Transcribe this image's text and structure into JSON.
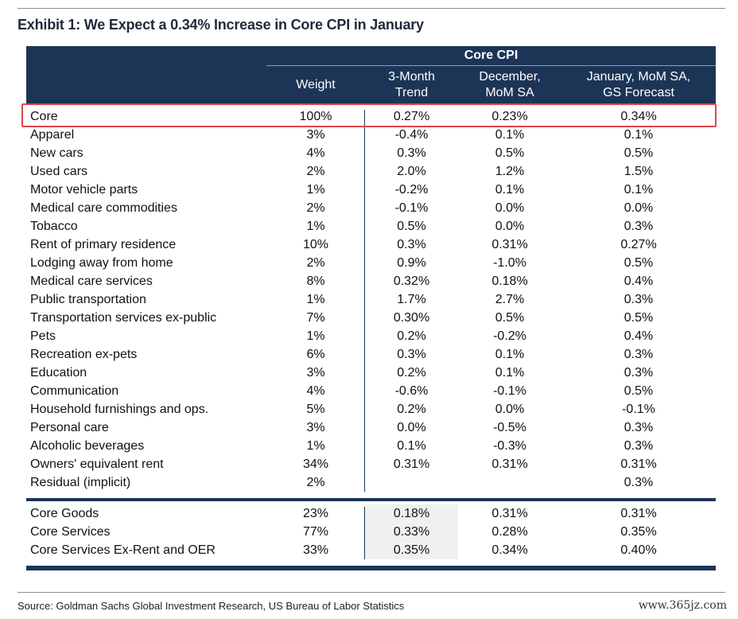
{
  "title": "Exhibit 1: We Expect a 0.34% Increase in Core CPI in January",
  "table": {
    "group_header": "Core CPI",
    "columns": [
      "Weight",
      "3-Month\nTrend",
      "December,\nMoM SA",
      "January, MoM SA,\nGS Forecast"
    ],
    "rows": [
      [
        "Core",
        "100%",
        "0.27%",
        "0.23%",
        "0.34%"
      ],
      [
        "Apparel",
        "3%",
        "-0.4%",
        "0.1%",
        "0.1%"
      ],
      [
        "New cars",
        "4%",
        "0.3%",
        "0.5%",
        "0.5%"
      ],
      [
        "Used cars",
        "2%",
        "2.0%",
        "1.2%",
        "1.5%"
      ],
      [
        "Motor vehicle parts",
        "1%",
        "-0.2%",
        "0.1%",
        "0.1%"
      ],
      [
        "Medical care commodities",
        "2%",
        "-0.1%",
        "0.0%",
        "0.0%"
      ],
      [
        "Tobacco",
        "1%",
        "0.5%",
        "0.0%",
        "0.3%"
      ],
      [
        "Rent of primary residence",
        "10%",
        "0.3%",
        "0.31%",
        "0.27%"
      ],
      [
        "Lodging away from home",
        "2%",
        "0.9%",
        "-1.0%",
        "0.5%"
      ],
      [
        "Medical care services",
        "8%",
        "0.32%",
        "0.18%",
        "0.4%"
      ],
      [
        "Public transportation",
        "1%",
        "1.7%",
        "2.7%",
        "0.3%"
      ],
      [
        "Transportation services ex-public",
        "7%",
        "0.30%",
        "0.5%",
        "0.5%"
      ],
      [
        "Pets",
        "1%",
        "0.2%",
        "-0.2%",
        "0.4%"
      ],
      [
        "Recreation ex-pets",
        "6%",
        "0.3%",
        "0.1%",
        "0.3%"
      ],
      [
        "Education",
        "3%",
        "0.2%",
        "0.1%",
        "0.3%"
      ],
      [
        "Communication",
        "4%",
        "-0.6%",
        "-0.1%",
        "0.5%"
      ],
      [
        "Household furnishings and ops.",
        "5%",
        "0.2%",
        "0.0%",
        "-0.1%"
      ],
      [
        "Personal care",
        "3%",
        "0.0%",
        "-0.5%",
        "0.3%"
      ],
      [
        "Alcoholic beverages",
        "1%",
        "0.1%",
        "-0.3%",
        "0.3%"
      ],
      [
        "Owners' equivalent rent",
        "34%",
        "0.31%",
        "0.31%",
        "0.31%"
      ],
      [
        "Residual (implicit)",
        "2%",
        "",
        "",
        "0.3%"
      ]
    ],
    "summary_rows": [
      [
        "Core Goods",
        "23%",
        "0.18%",
        "0.31%",
        "0.31%"
      ],
      [
        "Core Services",
        "77%",
        "0.33%",
        "0.28%",
        "0.35%"
      ],
      [
        "Core Services Ex-Rent and OER",
        "33%",
        "0.35%",
        "0.34%",
        "0.40%"
      ]
    ],
    "highlighted_row": "Core"
  },
  "source": "Source: Goldman Sachs Global Investment Research, US Bureau of Labor Statistics",
  "watermark": "www.365jz.com",
  "colors": {
    "header_bg": "#1c3557",
    "highlight": "#e0444e",
    "shade": "#f0f0f0"
  }
}
